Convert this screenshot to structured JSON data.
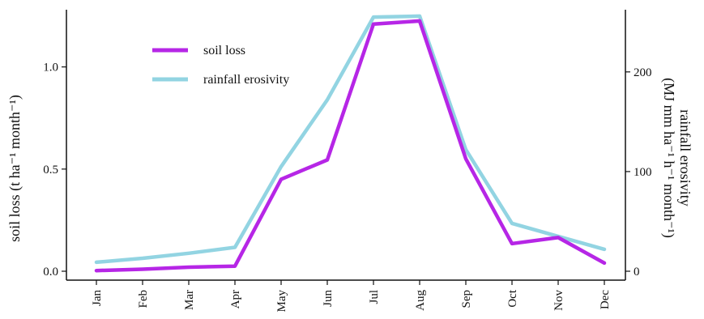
{
  "chart_data": {
    "type": "line",
    "categories": [
      "Jan",
      "Feb",
      "Mar",
      "Apr",
      "May",
      "Jun",
      "Jul",
      "Aug",
      "Sep",
      "Oct",
      "Nov",
      "Dec"
    ],
    "series": [
      {
        "name": "soil loss",
        "axis": "left",
        "color": "#B626E6",
        "values": [
          0.003,
          0.01,
          0.02,
          0.025,
          0.45,
          0.545,
          1.21,
          1.225,
          0.55,
          0.135,
          0.165,
          0.04
        ]
      },
      {
        "name": "rainfall erosivity",
        "axis": "right",
        "color": "#92D4E2",
        "values": [
          9,
          13,
          18,
          24,
          105,
          172,
          255,
          256,
          122,
          48,
          35,
          22
        ]
      }
    ],
    "ylabel_left": "soil loss (t ha⁻¹ month⁻¹)",
    "ylabel_right_line1": "rainfall erosivity",
    "ylabel_right_line2": "(MJ mm ha⁻¹ h⁻¹ month⁻¹)",
    "ylim_left": [
      0,
      1.28
    ],
    "ylim_right": [
      0,
      262.4
    ],
    "yticks_left": [
      "0.0",
      "0.5",
      "1.0"
    ],
    "yticks_right": [
      "0",
      "100",
      "200"
    ],
    "legend_position": "top-left",
    "grid": false
  }
}
